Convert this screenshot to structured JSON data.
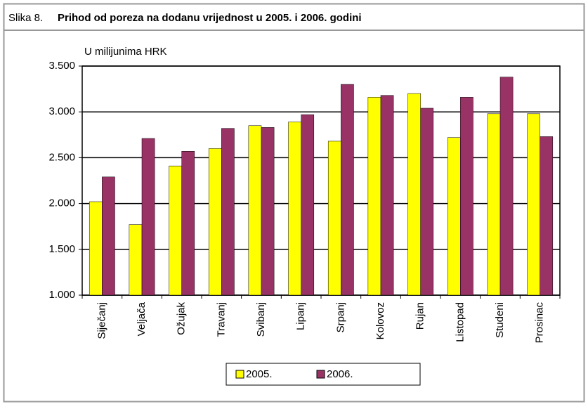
{
  "chart_data": {
    "type": "bar",
    "figure_label": "Slika 8.",
    "title": "Prihod od poreza na dodanu vrijednost u 2005. i 2006. godini",
    "y_label": "U milijunima HRK",
    "categories": [
      "Siječanj",
      "Veljača",
      "Ožujak",
      "Travanj",
      "Svibanj",
      "Lipanj",
      "Srpanj",
      "Kolovoz",
      "Rujan",
      "Listopad",
      "Studeni",
      "Prosinac"
    ],
    "series": [
      {
        "name": "2005.",
        "color": "#ffff00",
        "values": [
          2020,
          1770,
          2410,
          2600,
          2850,
          2890,
          2680,
          3160,
          3200,
          2720,
          2980,
          2980
        ]
      },
      {
        "name": "2006.",
        "color": "#993366",
        "values": [
          2290,
          2710,
          2570,
          2820,
          2830,
          2970,
          3300,
          3180,
          3040,
          3160,
          3380,
          2730
        ]
      }
    ],
    "ylim": [
      1000,
      3500
    ],
    "yticks": [
      {
        "value": 1000,
        "label": "1.000"
      },
      {
        "value": 1500,
        "label": "1.500"
      },
      {
        "value": 2000,
        "label": "2.000"
      },
      {
        "value": 2500,
        "label": "2.500"
      },
      {
        "value": 3000,
        "label": "3.000"
      },
      {
        "value": 3500,
        "label": "3.500"
      }
    ],
    "grid": true,
    "legend": "bottom"
  }
}
